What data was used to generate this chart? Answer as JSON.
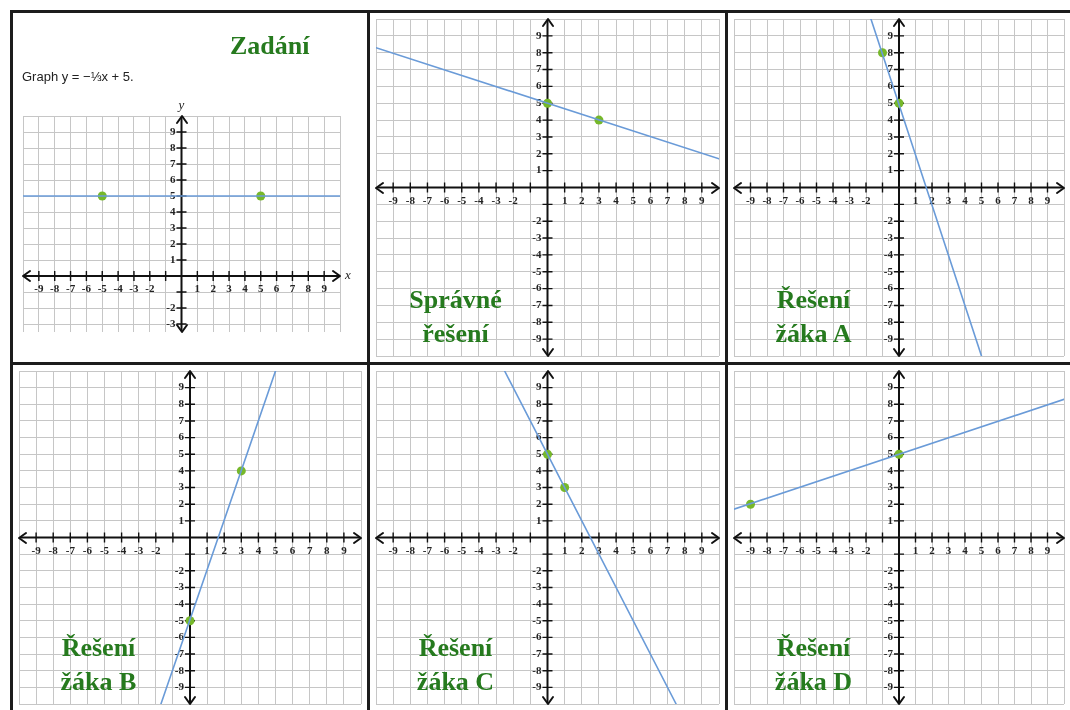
{
  "chart_data": [
    {
      "type": "line",
      "title": "Zadání",
      "subtitle": "Graph y = −⅓x + 5.",
      "xlabel": "x",
      "ylabel": "y",
      "xlim": [
        -10,
        10
      ],
      "ylim": [
        -3.5,
        10
      ],
      "xticks": [
        -9,
        -8,
        -7,
        -6,
        -5,
        -4,
        -3,
        -2,
        1,
        2,
        3,
        4,
        5,
        6,
        7,
        8,
        9
      ],
      "yticks": [
        -3,
        -2,
        1,
        2,
        3,
        4,
        5,
        6,
        7,
        8,
        9
      ],
      "grid": true,
      "series": [
        {
          "type": "line",
          "color": "#6a9bd8",
          "x": [
            -10,
            10
          ],
          "values": [
            5,
            5
          ],
          "marker": "none"
        },
        {
          "type": "scatter",
          "color": "#76b82a",
          "x": [
            -5,
            5
          ],
          "values": [
            5,
            5
          ],
          "marker": "circle"
        }
      ]
    },
    {
      "type": "line",
      "title": "Správné řešení",
      "xlim": [
        -10,
        10
      ],
      "ylim": [
        -10,
        10
      ],
      "xticks": [
        -9,
        -8,
        -7,
        -6,
        -5,
        -4,
        -3,
        -2,
        1,
        2,
        3,
        4,
        5,
        6,
        7,
        8,
        9
      ],
      "yticks": [
        -9,
        -8,
        -7,
        -6,
        -5,
        -4,
        -3,
        -2,
        1,
        2,
        3,
        4,
        5,
        6,
        7,
        8,
        9
      ],
      "grid": true,
      "series": [
        {
          "type": "line",
          "color": "#6a9bd8",
          "x": [
            -10,
            10
          ],
          "values": [
            8.3,
            1.7
          ],
          "marker": "none"
        },
        {
          "type": "scatter",
          "color": "#76b82a",
          "x": [
            0,
            3
          ],
          "values": [
            5,
            4
          ],
          "marker": "circle"
        }
      ]
    },
    {
      "type": "line",
      "title": "Řešení žáka A",
      "xlim": [
        -10,
        10
      ],
      "ylim": [
        -10,
        10
      ],
      "xticks": [
        -9,
        -8,
        -7,
        -6,
        -5,
        -4,
        -3,
        -2,
        1,
        2,
        3,
        4,
        5,
        6,
        7,
        8,
        9
      ],
      "yticks": [
        -9,
        -8,
        -7,
        -6,
        -5,
        -4,
        -3,
        -2,
        1,
        2,
        3,
        4,
        5,
        6,
        7,
        8,
        9
      ],
      "grid": true,
      "series": [
        {
          "type": "line",
          "color": "#6a9bd8",
          "x": [
            -1.7,
            5
          ],
          "values": [
            10,
            -10
          ],
          "marker": "none"
        },
        {
          "type": "scatter",
          "color": "#76b82a",
          "x": [
            -1,
            0
          ],
          "values": [
            8,
            5
          ],
          "marker": "circle"
        }
      ]
    },
    {
      "type": "line",
      "title": "Řešení žáka B",
      "xlim": [
        -10,
        10
      ],
      "ylim": [
        -10,
        10
      ],
      "xticks": [
        -9,
        -8,
        -7,
        -6,
        -5,
        -4,
        -3,
        -2,
        1,
        2,
        3,
        4,
        5,
        6,
        7,
        8,
        9
      ],
      "yticks": [
        -9,
        -8,
        -7,
        -6,
        -5,
        -4,
        -3,
        -2,
        1,
        2,
        3,
        4,
        5,
        6,
        7,
        8,
        9
      ],
      "grid": true,
      "series": [
        {
          "type": "line",
          "color": "#6a9bd8",
          "x": [
            -1.7,
            5
          ],
          "values": [
            -10,
            10
          ],
          "marker": "none"
        },
        {
          "type": "scatter",
          "color": "#76b82a",
          "x": [
            0,
            3
          ],
          "values": [
            -5,
            4
          ],
          "marker": "circle"
        }
      ]
    },
    {
      "type": "line",
      "title": "Řešení žáka C",
      "xlim": [
        -10,
        10
      ],
      "ylim": [
        -10,
        10
      ],
      "xticks": [
        -9,
        -8,
        -7,
        -6,
        -5,
        -4,
        -3,
        -2,
        1,
        2,
        3,
        4,
        5,
        6,
        7,
        8,
        9
      ],
      "yticks": [
        -9,
        -8,
        -7,
        -6,
        -5,
        -4,
        -3,
        -2,
        1,
        2,
        3,
        4,
        5,
        6,
        7,
        8,
        9
      ],
      "grid": true,
      "series": [
        {
          "type": "line",
          "color": "#6a9bd8",
          "x": [
            -2.5,
            7.5
          ],
          "values": [
            10,
            -10
          ],
          "marker": "none"
        },
        {
          "type": "scatter",
          "color": "#76b82a",
          "x": [
            0,
            1
          ],
          "values": [
            5,
            3
          ],
          "marker": "circle"
        }
      ]
    },
    {
      "type": "line",
      "title": "Řešení žáka D",
      "xlim": [
        -10,
        10
      ],
      "ylim": [
        -10,
        10
      ],
      "xticks": [
        -9,
        -8,
        -7,
        -6,
        -5,
        -4,
        -3,
        -2,
        1,
        2,
        3,
        4,
        5,
        6,
        7,
        8,
        9
      ],
      "yticks": [
        -9,
        -8,
        -7,
        -6,
        -5,
        -4,
        -3,
        -2,
        1,
        2,
        3,
        4,
        5,
        6,
        7,
        8,
        9
      ],
      "grid": true,
      "series": [
        {
          "type": "line",
          "color": "#6a9bd8",
          "x": [
            -10,
            10
          ],
          "values": [
            1.7,
            8.3
          ],
          "marker": "none"
        },
        {
          "type": "scatter",
          "color": "#76b82a",
          "x": [
            -9,
            0
          ],
          "values": [
            2,
            5
          ],
          "marker": "circle"
        }
      ]
    }
  ]
}
